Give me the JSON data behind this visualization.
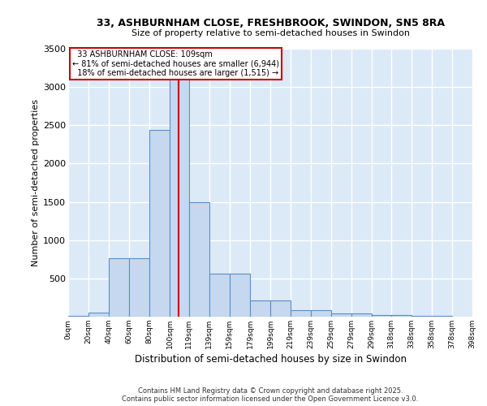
{
  "title1": "33, ASHBURNHAM CLOSE, FRESHBROOK, SWINDON, SN5 8RA",
  "title2": "Size of property relative to semi-detached houses in Swindon",
  "xlabel": "Distribution of semi-detached houses by size in Swindon",
  "ylabel": "Number of semi-detached properties",
  "bar_color": "#c5d8f0",
  "bar_edge_color": "#5b8ec4",
  "background_color": "#dce9f7",
  "grid_color": "#ffffff",
  "property_size": 109,
  "property_label": "33 ASHBURNHAM CLOSE: 109sqm",
  "pct_smaller": 81,
  "count_smaller": 6944,
  "pct_larger": 18,
  "count_larger": 1515,
  "red_line_color": "#cc0000",
  "annotation_box_color": "#cc0000",
  "bin_edges": [
    0,
    20,
    40,
    60,
    80,
    100,
    119,
    139,
    159,
    179,
    199,
    219,
    239,
    259,
    279,
    299,
    318,
    338,
    358,
    378,
    398
  ],
  "bin_labels": [
    "0sqm",
    "20sqm",
    "40sqm",
    "60sqm",
    "80sqm",
    "100sqm",
    "119sqm",
    "139sqm",
    "159sqm",
    "179sqm",
    "199sqm",
    "219sqm",
    "239sqm",
    "259sqm",
    "279sqm",
    "299sqm",
    "318sqm",
    "338sqm",
    "358sqm",
    "378sqm",
    "398sqm"
  ],
  "bar_heights": [
    15,
    55,
    760,
    760,
    2440,
    3250,
    1500,
    560,
    560,
    210,
    210,
    90,
    90,
    45,
    45,
    25,
    25,
    8,
    8,
    3,
    0
  ],
  "ylim": [
    0,
    3500
  ],
  "yticks": [
    0,
    500,
    1000,
    1500,
    2000,
    2500,
    3000,
    3500
  ],
  "footer1": "Contains HM Land Registry data © Crown copyright and database right 2025.",
  "footer2": "Contains public sector information licensed under the Open Government Licence v3.0."
}
